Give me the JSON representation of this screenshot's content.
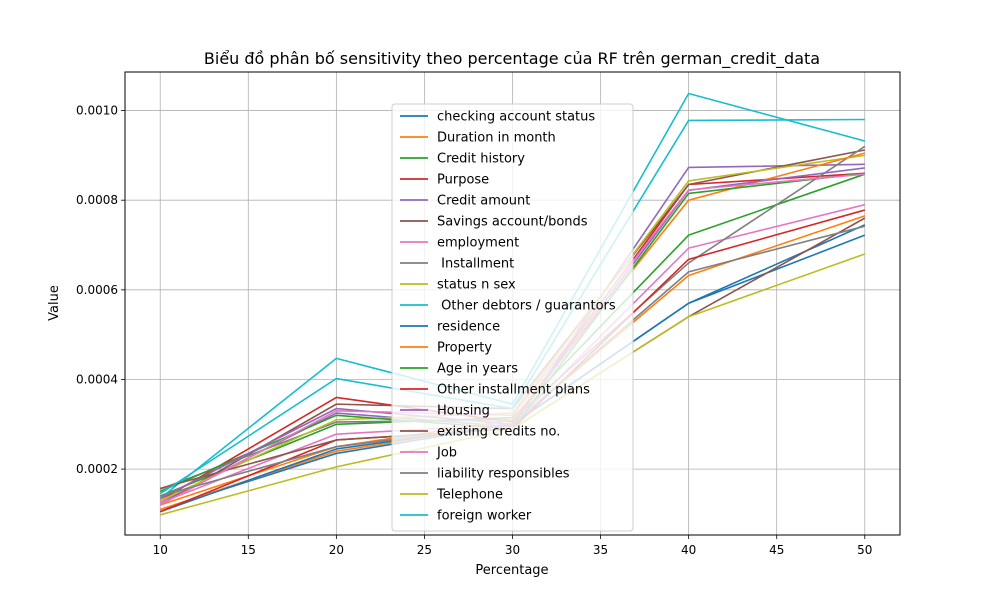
{
  "chart_data": {
    "type": "line",
    "title": "Biểu đồ phân bố sensitivity theo percentage của RF trên german_credit_data",
    "xlabel": "Percentage",
    "ylabel": "Value",
    "x": [
      10,
      20,
      30,
      40,
      50
    ],
    "xticks": [
      "10",
      "15",
      "20",
      "25",
      "30",
      "35",
      "40",
      "45",
      "50"
    ],
    "xtick_values": [
      10,
      15,
      20,
      25,
      30,
      35,
      40,
      45,
      50
    ],
    "yticks": [
      "0.0002",
      "0.0004",
      "0.0006",
      "0.0008",
      "0.0010"
    ],
    "ytick_values": [
      0.0002,
      0.0004,
      0.0006,
      0.0008,
      0.001
    ],
    "xlim": [
      8.0,
      52.0
    ],
    "ylim": [
      5.3e-05,
      0.001086
    ],
    "grid": true,
    "legend_position": "center",
    "series": [
      {
        "name": "checking account status",
        "color": "#1f77b4",
        "values": [
          0.00011,
          0.000235,
          0.0003,
          0.00057,
          0.000722
        ]
      },
      {
        "name": "Duration in month",
        "color": "#ff7f0e",
        "values": [
          0.00011,
          0.00024,
          0.0003,
          0.000632,
          0.000765
        ]
      },
      {
        "name": "Credit history",
        "color": "#2ca02c",
        "values": [
          0.00014,
          0.0003,
          0.000315,
          0.000722,
          0.000858
        ]
      },
      {
        "name": "Purpose",
        "color": "#d62728",
        "values": [
          0.00013,
          0.00036,
          0.000305,
          0.000835,
          0.00086
        ]
      },
      {
        "name": "Credit amount",
        "color": "#9467bd",
        "values": [
          0.000125,
          0.000325,
          0.000295,
          0.000873,
          0.00088
        ]
      },
      {
        "name": "Savings account/bonds",
        "color": "#8c564b",
        "values": [
          0.00012,
          0.000345,
          0.000335,
          0.000835,
          0.000912
        ]
      },
      {
        "name": "employment",
        "color": "#e377c2",
        "values": [
          0.000125,
          0.000278,
          0.0003,
          0.000693,
          0.00079
        ]
      },
      {
        "name": " Installment",
        "color": "#7f7f7f",
        "values": [
          0.000155,
          0.000305,
          0.00031,
          0.00066,
          0.00092
        ]
      },
      {
        "name": "status n sex",
        "color": "#bcbd22",
        "values": [
          0.00013,
          0.00031,
          0.000325,
          0.000843,
          0.0009
        ]
      },
      {
        "name": " Other debtors / guarantors",
        "color": "#17becf",
        "values": [
          0.000135,
          0.000447,
          0.000345,
          0.001038,
          0.000932
        ]
      },
      {
        "name": "residence",
        "color": "#1f77b4",
        "values": [
          0.000105,
          0.000245,
          0.0003,
          0.00057,
          0.000745
        ]
      },
      {
        "name": "Property",
        "color": "#ff7f0e",
        "values": [
          0.00012,
          0.00025,
          0.00031,
          0.0008,
          0.000905
        ]
      },
      {
        "name": "Age in years",
        "color": "#2ca02c",
        "values": [
          0.00015,
          0.00032,
          0.00029,
          0.000815,
          0.00086
        ]
      },
      {
        "name": "Other installment plans",
        "color": "#d62728",
        "values": [
          0.000105,
          0.000265,
          0.00029,
          0.000668,
          0.000778
        ]
      },
      {
        "name": "Housing",
        "color": "#9467bd",
        "values": [
          0.000135,
          0.000335,
          0.0003,
          0.000822,
          0.000872
        ]
      },
      {
        "name": "existing credits no.",
        "color": "#8c564b",
        "values": [
          0.000157,
          0.000265,
          0.00029,
          0.00054,
          0.00076
        ]
      },
      {
        "name": "Job",
        "color": "#e377c2",
        "values": [
          0.00012,
          0.00033,
          0.00032,
          0.000823,
          0.000858
        ]
      },
      {
        "name": "liability responsibles",
        "color": "#7f7f7f",
        "values": [
          0.00014,
          0.00025,
          0.0003,
          0.00064,
          0.000742
        ]
      },
      {
        "name": "Telephone",
        "color": "#bcbd22",
        "values": [
          9.8e-05,
          0.000205,
          0.00029,
          0.00054,
          0.00068
        ]
      },
      {
        "name": "foreign worker",
        "color": "#17becf",
        "values": [
          0.000145,
          0.000402,
          0.000335,
          0.000978,
          0.00098
        ]
      }
    ]
  }
}
